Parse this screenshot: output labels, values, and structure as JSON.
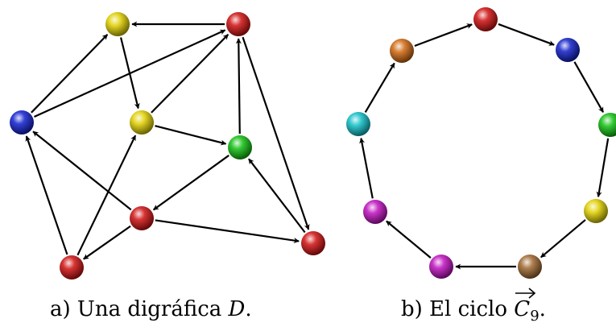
{
  "panel_a": {
    "caption_prefix": "a) Una digráfica",
    "caption_var": "D",
    "caption_suffix": ".",
    "vertices": [
      {
        "id": "y1",
        "color": "#e0d000"
      },
      {
        "id": "r1",
        "color": "#d01010"
      },
      {
        "id": "b1",
        "color": "#1020d0"
      },
      {
        "id": "y2",
        "color": "#e0d000"
      },
      {
        "id": "g1",
        "color": "#10c010"
      },
      {
        "id": "r2",
        "color": "#d01010"
      },
      {
        "id": "r3",
        "color": "#d01010"
      },
      {
        "id": "r4",
        "color": "#d01010"
      }
    ],
    "edges": [
      [
        "r1",
        "y1"
      ],
      [
        "b1",
        "y1"
      ],
      [
        "b1",
        "r1"
      ],
      [
        "y1",
        "y2"
      ],
      [
        "y2",
        "r1"
      ],
      [
        "y2",
        "g1"
      ],
      [
        "g1",
        "r1"
      ],
      [
        "r1",
        "r4"
      ],
      [
        "g1",
        "r2"
      ],
      [
        "r2",
        "b1"
      ],
      [
        "r2",
        "r4"
      ],
      [
        "r4",
        "g1"
      ],
      [
        "r3",
        "b1"
      ],
      [
        "r3",
        "y2"
      ],
      [
        "r2",
        "r3"
      ]
    ]
  },
  "panel_b": {
    "caption_prefix": "b) El ciclo",
    "caption_var": "C",
    "caption_sub": "9",
    "caption_suffix": ".",
    "vertices": [
      {
        "id": "v1",
        "color": "#d01010"
      },
      {
        "id": "v2",
        "color": "#1020c8"
      },
      {
        "id": "v3",
        "color": "#10c010"
      },
      {
        "id": "v4",
        "color": "#e0d000"
      },
      {
        "id": "v5",
        "color": "#a06830"
      },
      {
        "id": "v6",
        "color": "#c010c0"
      },
      {
        "id": "v7",
        "color": "#c010c0"
      },
      {
        "id": "v8",
        "color": "#10c0c8"
      },
      {
        "id": "v9",
        "color": "#d06810"
      }
    ],
    "edges": [
      [
        "v1",
        "v2"
      ],
      [
        "v2",
        "v3"
      ],
      [
        "v3",
        "v4"
      ],
      [
        "v4",
        "v5"
      ],
      [
        "v5",
        "v6"
      ],
      [
        "v6",
        "v7"
      ],
      [
        "v7",
        "v8"
      ],
      [
        "v8",
        "v9"
      ],
      [
        "v9",
        "v1"
      ]
    ]
  }
}
